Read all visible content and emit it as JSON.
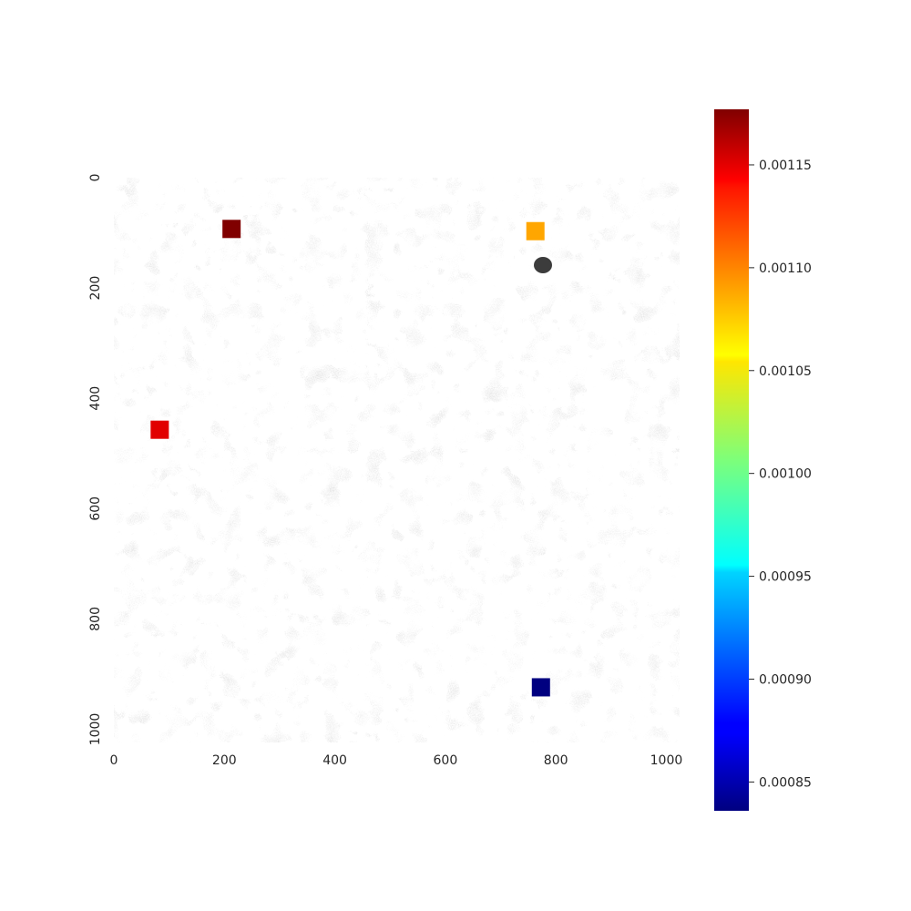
{
  "chart_data": {
    "type": "heatmap",
    "background_image": "grayscale SEM micrograph of a multiphase steel microstructure",
    "x_ticks": [
      "0",
      "200",
      "400",
      "600",
      "800",
      "1000"
    ],
    "x_tick_values": [
      0,
      200,
      400,
      600,
      800,
      1000
    ],
    "y_ticks": [
      "0",
      "200",
      "400",
      "600",
      "800",
      "1000"
    ],
    "y_tick_values": [
      0,
      200,
      400,
      600,
      800,
      1000
    ],
    "xlim": [
      0,
      1024
    ],
    "ylim": [
      0,
      1024
    ],
    "y_inverted": true,
    "colormap": "jet",
    "colorbar": {
      "range": [
        0.000836,
        0.001177
      ],
      "ticks": [
        "0.00085",
        "0.00090",
        "0.00095",
        "0.00100",
        "0.00105",
        "0.00110",
        "0.00115"
      ],
      "tick_values": [
        0.00085,
        0.0009,
        0.00095,
        0.001,
        0.00105,
        0.0011,
        0.00115
      ],
      "position": "right"
    },
    "markers": [
      {
        "x": 213,
        "y": 93,
        "value": 0.001177,
        "color": "#800000"
      },
      {
        "x": 763,
        "y": 97,
        "value": 0.0011,
        "color": "#ffa600"
      },
      {
        "x": 83,
        "y": 457,
        "value": 0.00115,
        "color": "#e10000"
      },
      {
        "x": 773,
        "y": 924,
        "value": 0.000836,
        "color": "#000080"
      }
    ]
  }
}
